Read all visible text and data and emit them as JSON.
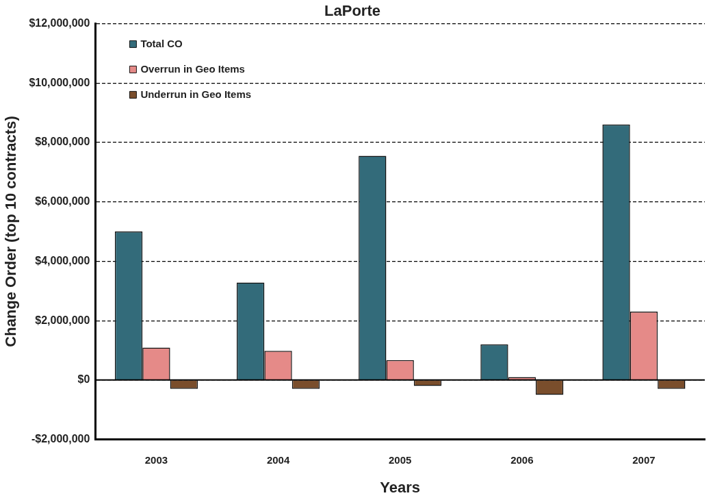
{
  "chart_data": {
    "type": "bar",
    "title": "LaPorte",
    "xlabel": "Years",
    "ylabel": "Change Order (top 10 contracts)",
    "categories": [
      "2003",
      "2004",
      "2005",
      "2006",
      "2007"
    ],
    "series": [
      {
        "name": "Total CO",
        "color": "#336b7a",
        "values": [
          5000000,
          3280000,
          7550000,
          1200000,
          8600000
        ]
      },
      {
        "name": "Overrun in Geo Items",
        "color": "#e58a88",
        "values": [
          1090000,
          980000,
          670000,
          100000,
          2300000
        ]
      },
      {
        "name": "Underrun in Geo Items",
        "color": "#7a4e2c",
        "values": [
          -300000,
          -300000,
          -200000,
          -500000,
          -300000
        ]
      }
    ],
    "ylim": [
      -2000000,
      12000000
    ],
    "yticks": [
      {
        "value": -2000000,
        "label": "-$2,000,000"
      },
      {
        "value": 0,
        "label": "$0"
      },
      {
        "value": 2000000,
        "label": "$2,000,000"
      },
      {
        "value": 4000000,
        "label": "$4,000,000"
      },
      {
        "value": 6000000,
        "label": "$6,000,000"
      },
      {
        "value": 8000000,
        "label": "$8,000,000"
      },
      {
        "value": 10000000,
        "label": "$10,000,000"
      },
      {
        "value": 12000000,
        "label": "$12,000,000"
      }
    ],
    "grid": "y",
    "legend": "top left"
  }
}
